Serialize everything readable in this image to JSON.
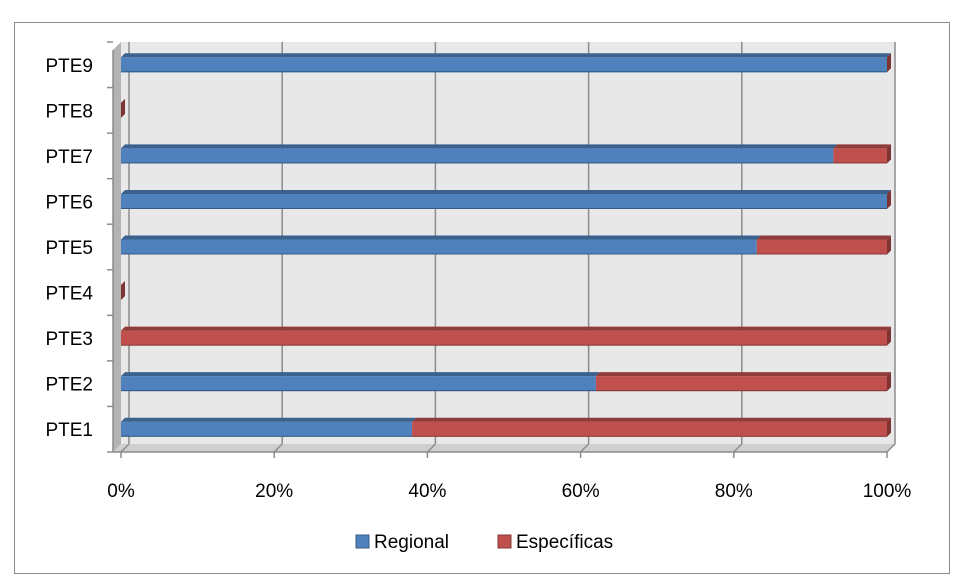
{
  "chart_data": {
    "type": "bar",
    "orientation": "horizontal",
    "stacked": "percent",
    "categories": [
      "PTE1",
      "PTE2",
      "PTE3",
      "PTE4",
      "PTE5",
      "PTE6",
      "PTE7",
      "PTE8",
      "PTE9"
    ],
    "series": [
      {
        "name": "Regional",
        "color": "#4f81bd",
        "values": [
          38,
          62,
          0,
          0,
          83,
          100,
          93,
          0,
          100
        ]
      },
      {
        "name": "Específicas",
        "color": "#c0504d",
        "values": [
          62,
          38,
          100,
          0,
          17,
          0,
          7,
          0,
          0
        ]
      }
    ],
    "x_ticks": [
      "0%",
      "20%",
      "40%",
      "60%",
      "80%",
      "100%"
    ],
    "xlim": [
      0,
      100
    ],
    "grid": true,
    "legend": "bottom",
    "title": "",
    "xlabel": "",
    "ylabel": ""
  }
}
